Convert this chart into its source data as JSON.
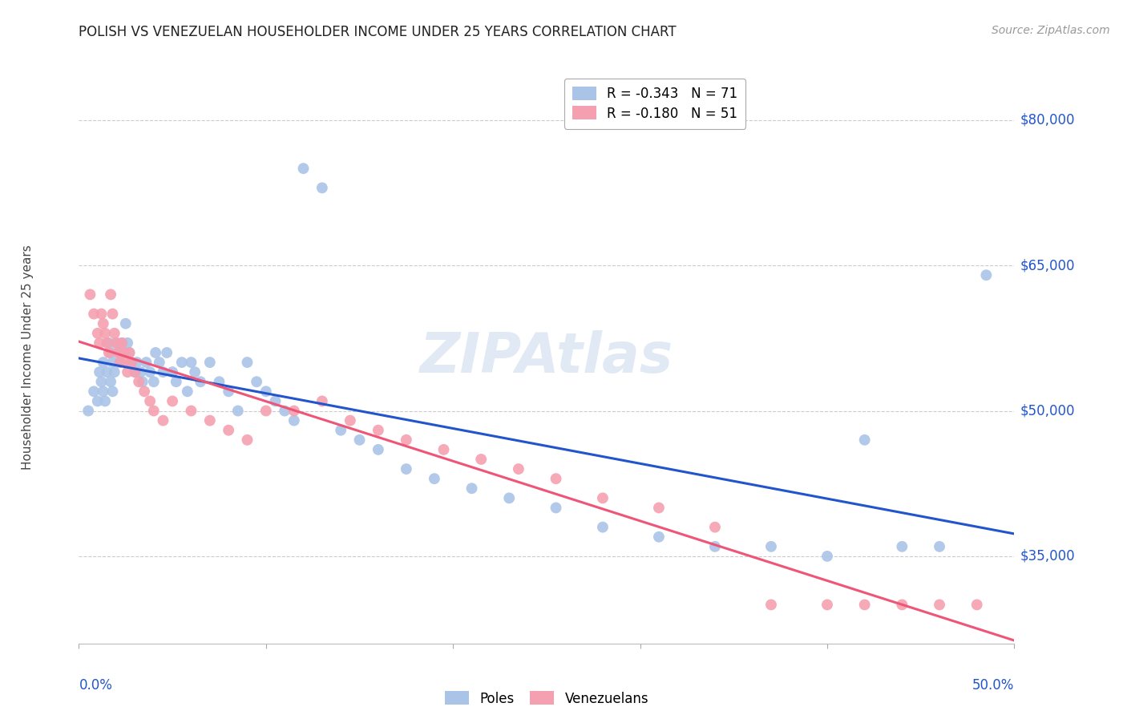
{
  "title": "POLISH VS VENEZUELAN HOUSEHOLDER INCOME UNDER 25 YEARS CORRELATION CHART",
  "source": "Source: ZipAtlas.com",
  "ylabel": "Householder Income Under 25 years",
  "y_tick_labels": [
    "$35,000",
    "$50,000",
    "$65,000",
    "$80,000"
  ],
  "y_tick_values": [
    35000,
    50000,
    65000,
    80000
  ],
  "ylim": [
    26000,
    85000
  ],
  "xlim": [
    0.0,
    0.5
  ],
  "legend_entries": [
    {
      "label": "R = -0.343   N = 71",
      "color": "#aac4e8"
    },
    {
      "label": "R = -0.180   N = 51",
      "color": "#f5a0b0"
    }
  ],
  "legend_label_poles": "Poles",
  "legend_label_venezuelans": "Venezuelans",
  "poles_color": "#aac4e8",
  "venezuelans_color": "#f5a0b0",
  "poles_line_color": "#2255cc",
  "venezuelans_line_color": "#ee5577",
  "poles_x": [
    0.005,
    0.008,
    0.01,
    0.011,
    0.012,
    0.013,
    0.013,
    0.014,
    0.015,
    0.016,
    0.017,
    0.017,
    0.018,
    0.018,
    0.019,
    0.02,
    0.021,
    0.022,
    0.023,
    0.024,
    0.025,
    0.026,
    0.027,
    0.028,
    0.03,
    0.031,
    0.033,
    0.034,
    0.036,
    0.038,
    0.04,
    0.041,
    0.043,
    0.045,
    0.047,
    0.05,
    0.052,
    0.055,
    0.058,
    0.06,
    0.062,
    0.065,
    0.07,
    0.075,
    0.08,
    0.085,
    0.09,
    0.095,
    0.1,
    0.105,
    0.11,
    0.115,
    0.12,
    0.13,
    0.14,
    0.15,
    0.16,
    0.175,
    0.19,
    0.21,
    0.23,
    0.255,
    0.28,
    0.31,
    0.34,
    0.37,
    0.4,
    0.42,
    0.44,
    0.46,
    0.485
  ],
  "poles_y": [
    50000,
    52000,
    51000,
    54000,
    53000,
    55000,
    52000,
    51000,
    54000,
    57000,
    56000,
    53000,
    52000,
    55000,
    54000,
    57000,
    56000,
    55000,
    57000,
    56000,
    59000,
    57000,
    56000,
    55000,
    54000,
    55000,
    54000,
    53000,
    55000,
    54000,
    53000,
    56000,
    55000,
    54000,
    56000,
    54000,
    53000,
    55000,
    52000,
    55000,
    54000,
    53000,
    55000,
    53000,
    52000,
    50000,
    55000,
    53000,
    52000,
    51000,
    50000,
    49000,
    75000,
    73000,
    48000,
    47000,
    46000,
    44000,
    43000,
    42000,
    41000,
    40000,
    38000,
    37000,
    36000,
    36000,
    35000,
    47000,
    36000,
    36000,
    64000
  ],
  "venezuelans_x": [
    0.006,
    0.008,
    0.01,
    0.011,
    0.012,
    0.013,
    0.014,
    0.015,
    0.016,
    0.017,
    0.018,
    0.019,
    0.02,
    0.021,
    0.022,
    0.023,
    0.024,
    0.025,
    0.026,
    0.027,
    0.028,
    0.03,
    0.032,
    0.035,
    0.038,
    0.04,
    0.045,
    0.05,
    0.06,
    0.07,
    0.08,
    0.09,
    0.1,
    0.115,
    0.13,
    0.145,
    0.16,
    0.175,
    0.195,
    0.215,
    0.235,
    0.255,
    0.28,
    0.31,
    0.34,
    0.37,
    0.4,
    0.42,
    0.44,
    0.46,
    0.48
  ],
  "venezuelans_y": [
    62000,
    60000,
    58000,
    57000,
    60000,
    59000,
    58000,
    57000,
    56000,
    62000,
    60000,
    58000,
    57000,
    56000,
    55000,
    57000,
    56000,
    55000,
    54000,
    56000,
    55000,
    54000,
    53000,
    52000,
    51000,
    50000,
    49000,
    51000,
    50000,
    49000,
    48000,
    47000,
    50000,
    50000,
    51000,
    49000,
    48000,
    47000,
    46000,
    45000,
    44000,
    43000,
    41000,
    40000,
    38000,
    30000,
    30000,
    30000,
    30000,
    30000,
    30000
  ]
}
